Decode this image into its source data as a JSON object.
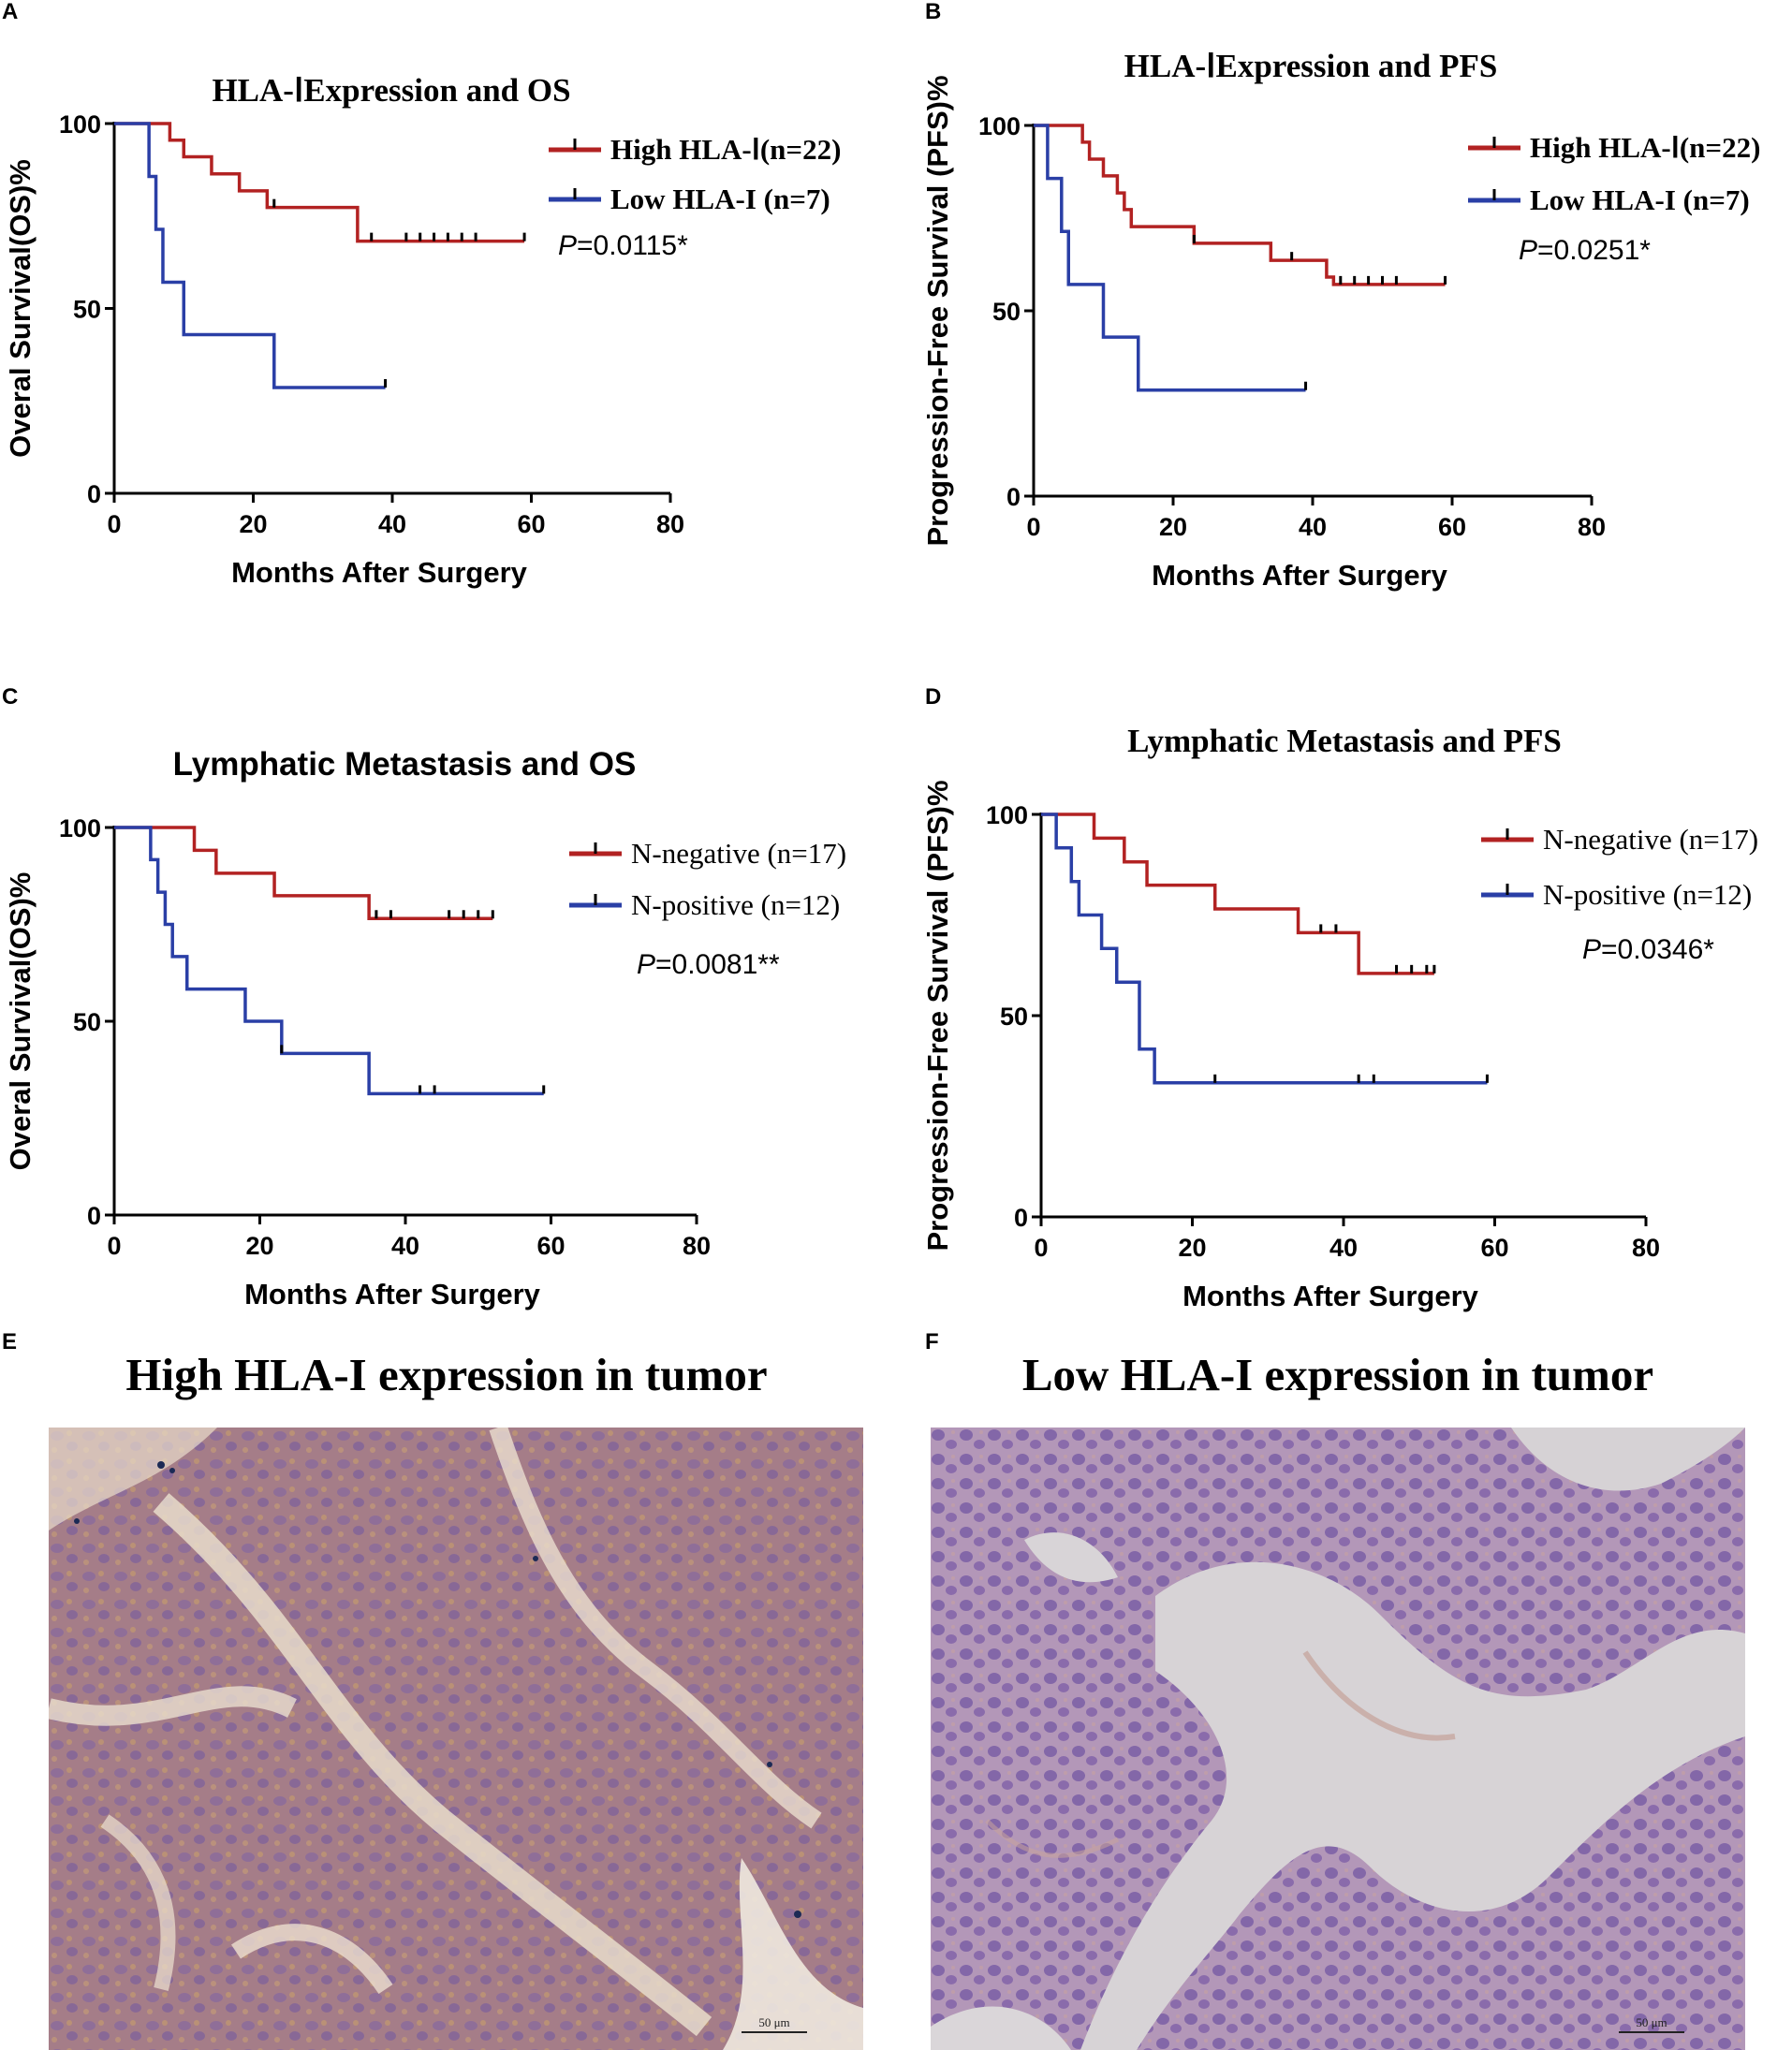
{
  "colors": {
    "high": "#b22222",
    "low": "#2a3fa6",
    "axis": "#000000"
  },
  "panels": {
    "A": {
      "letter": "A"
    },
    "B": {
      "letter": "B"
    },
    "C": {
      "letter": "C"
    },
    "D": {
      "letter": "D"
    },
    "E": {
      "letter": "E",
      "title": "High HLA-I expression in tumor",
      "scale": "50 μm"
    },
    "F": {
      "letter": "F",
      "title": "Low HLA-I expression in tumor",
      "scale": "50 μm"
    }
  },
  "chart_data": [
    {
      "id": "A",
      "type": "line",
      "title": "HLA-ⅠExpression and OS",
      "xlabel": "Months After Surgery",
      "ylabel": "Overal Survival(OS)%",
      "xlim": [
        0,
        80
      ],
      "ylim": [
        0,
        100
      ],
      "xticks": [
        0,
        20,
        40,
        60,
        80
      ],
      "yticks": [
        0,
        50,
        100
      ],
      "pvalue": "=0.0115*",
      "series": [
        {
          "name": "High HLA-Ⅰ(n=22)",
          "color": "#b22222",
          "steps": [
            [
              0,
              100
            ],
            [
              8,
              95.5
            ],
            [
              10,
              91
            ],
            [
              14,
              86.4
            ],
            [
              18,
              81.8
            ],
            [
              22,
              77.3
            ],
            [
              35,
              68.2
            ],
            [
              59,
              68.2
            ]
          ],
          "censors": [
            23,
            37,
            42,
            44,
            46,
            48,
            50,
            52,
            59
          ]
        },
        {
          "name": "Low HLA-I (n=7)",
          "color": "#2a3fa6",
          "steps": [
            [
              0,
              100
            ],
            [
              5,
              85.7
            ],
            [
              6,
              71.4
            ],
            [
              7,
              57.1
            ],
            [
              10,
              42.9
            ],
            [
              23,
              28.6
            ],
            [
              39,
              28.6
            ]
          ],
          "censors": [
            39
          ]
        }
      ]
    },
    {
      "id": "B",
      "type": "line",
      "title": "HLA-ⅠExpression and PFS",
      "xlabel": "Months After Surgery",
      "ylabel": "Progression-Free Survival (PFS)%",
      "xlim": [
        0,
        80
      ],
      "ylim": [
        0,
        100
      ],
      "xticks": [
        0,
        20,
        40,
        60,
        80
      ],
      "yticks": [
        0,
        50,
        100
      ],
      "pvalue": "=0.0251*",
      "series": [
        {
          "name": "High HLA-Ⅰ(n=22)",
          "color": "#b22222",
          "steps": [
            [
              0,
              100
            ],
            [
              7,
              95.5
            ],
            [
              8,
              90.9
            ],
            [
              10,
              86.4
            ],
            [
              12,
              81.8
            ],
            [
              13,
              77.3
            ],
            [
              14,
              72.7
            ],
            [
              23,
              68.2
            ],
            [
              34,
              63.6
            ],
            [
              42,
              59.1
            ],
            [
              43,
              57.1
            ],
            [
              59,
              57.1
            ]
          ],
          "censors": [
            23,
            37,
            44,
            46,
            48,
            50,
            52,
            59
          ]
        },
        {
          "name": "Low HLA-I (n=7)",
          "color": "#2a3fa6",
          "steps": [
            [
              0,
              100
            ],
            [
              2,
              85.7
            ],
            [
              4,
              71.4
            ],
            [
              5,
              57.1
            ],
            [
              10,
              42.9
            ],
            [
              15,
              28.6
            ],
            [
              39,
              28.6
            ]
          ],
          "censors": [
            39
          ]
        }
      ]
    },
    {
      "id": "C",
      "type": "line",
      "title": "Lymphatic Metastasis and OS",
      "xlabel": "Months After Surgery",
      "ylabel": "Overal Survival(OS)%",
      "xlim": [
        0,
        80
      ],
      "ylim": [
        0,
        100
      ],
      "xticks": [
        0,
        20,
        40,
        60,
        80
      ],
      "yticks": [
        0,
        50,
        100
      ],
      "pvalue": "=0.0081**",
      "series": [
        {
          "name": "N-negative (n=17)",
          "color": "#b22222",
          "steps": [
            [
              0,
              100
            ],
            [
              11,
              94.1
            ],
            [
              14,
              88.2
            ],
            [
              22,
              82.4
            ],
            [
              35,
              76.5
            ],
            [
              52,
              76.5
            ]
          ],
          "censors": [
            36,
            38,
            46,
            48,
            50,
            52
          ]
        },
        {
          "name": "N-positive (n=12)",
          "color": "#2a3fa6",
          "steps": [
            [
              0,
              100
            ],
            [
              5,
              91.7
            ],
            [
              6,
              83.3
            ],
            [
              7,
              75
            ],
            [
              8,
              66.7
            ],
            [
              10,
              58.3
            ],
            [
              18,
              50
            ],
            [
              23,
              41.7
            ],
            [
              35,
              31.3
            ],
            [
              59,
              31.3
            ]
          ],
          "censors": [
            23,
            42,
            44,
            59
          ]
        }
      ]
    },
    {
      "id": "D",
      "type": "line",
      "title": "Lymphatic Metastasis and PFS",
      "xlabel": "Months After Surgery",
      "ylabel": "Progression-Free Survival (PFS)%",
      "xlim": [
        0,
        80
      ],
      "ylim": [
        0,
        100
      ],
      "xticks": [
        0,
        20,
        40,
        60,
        80
      ],
      "yticks": [
        0,
        50,
        100
      ],
      "pvalue": "=0.0346*",
      "series": [
        {
          "name": "N-negative (n=17)",
          "color": "#b22222",
          "steps": [
            [
              0,
              100
            ],
            [
              7,
              94.1
            ],
            [
              11,
              88.2
            ],
            [
              14,
              82.4
            ],
            [
              23,
              76.5
            ],
            [
              34,
              70.6
            ],
            [
              42,
              60.5
            ],
            [
              52,
              60.5
            ]
          ],
          "censors": [
            37,
            39,
            47,
            49,
            51,
            52
          ]
        },
        {
          "name": "N-positive (n=12)",
          "color": "#2a3fa6",
          "steps": [
            [
              0,
              100
            ],
            [
              2,
              91.7
            ],
            [
              4,
              83.3
            ],
            [
              5,
              75
            ],
            [
              8,
              66.7
            ],
            [
              10,
              58.3
            ],
            [
              13,
              41.7
            ],
            [
              15,
              33.3
            ],
            [
              59,
              33.3
            ]
          ],
          "censors": [
            23,
            42,
            44,
            59
          ]
        }
      ]
    }
  ]
}
